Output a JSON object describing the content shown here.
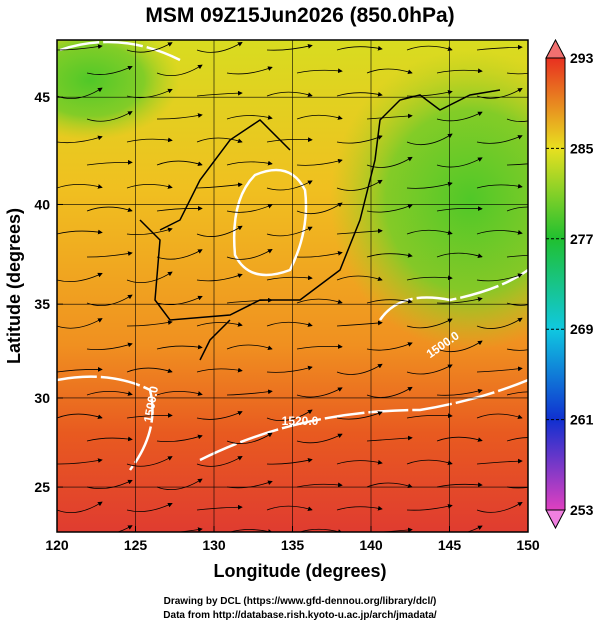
{
  "title": "MSM 09Z15Jun2026 (850.0hPa)",
  "projection": "mercator",
  "x_axis": {
    "label": "Longitude (degrees)",
    "lim": [
      120,
      150
    ],
    "ticks": [
      120,
      125,
      130,
      135,
      140,
      145,
      150
    ]
  },
  "y_axis": {
    "label": "Latitude  (degrees)",
    "lim": [
      22.4,
      47.5
    ],
    "ticks": [
      25,
      30,
      35,
      40,
      45
    ]
  },
  "grid": true,
  "colorbar": {
    "lim": [
      253,
      293
    ],
    "ticks": [
      253,
      261,
      269,
      277,
      285,
      293
    ],
    "colors": [
      "#e040c0",
      "#1030d0",
      "#10c8e0",
      "#20c030",
      "#e8e020",
      "#e83020"
    ]
  },
  "contour_labels": [
    "1520.0",
    "1500.0",
    "1500.0"
  ],
  "credits": [
    "Drawing by DCL (https://www.gfd-dennou.org/library/dcl/)",
    "Data from http://database.rish.kyoto-u.ac.jp/arch/jmadata/"
  ]
}
